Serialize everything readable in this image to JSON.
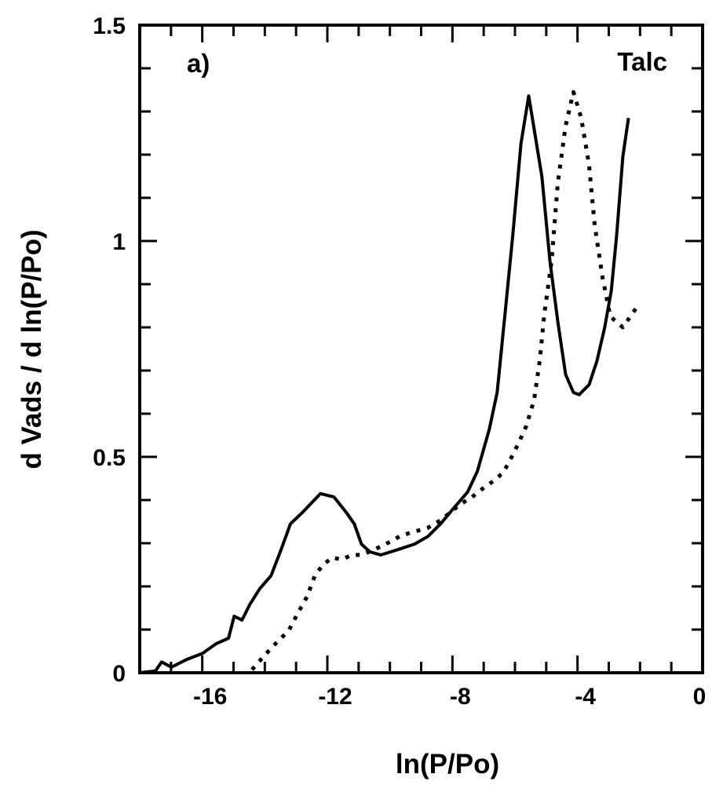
{
  "chart_data": {
    "type": "line",
    "title": "",
    "panel_label": "a)",
    "annotation": "Talc",
    "xlabel": "ln(P/Po)",
    "ylabel": "d Vads / d ln(P/Po)",
    "xlim": [
      -18,
      0
    ],
    "ylim": [
      0,
      1.5
    ],
    "x_ticks": [
      -16,
      -12,
      -8,
      -4,
      0
    ],
    "x_tick_labels": [
      "-16",
      "-12",
      "-8",
      "-4",
      "0"
    ],
    "x_minor_step": 1,
    "y_ticks": [
      0,
      0.5,
      1,
      1.5
    ],
    "y_tick_labels": [
      "0",
      "0.5",
      "1",
      "1.5"
    ],
    "y_minor_step": 0.1,
    "grid": false,
    "series": [
      {
        "name": "solid",
        "style": "solid",
        "color": "#000000",
        "x": [
          -18.0,
          -17.5,
          -17.3,
          -16.99,
          -16.49,
          -15.99,
          -15.56,
          -15.16,
          -14.98,
          -14.73,
          -14.48,
          -14.16,
          -13.8,
          -13.48,
          -13.18,
          -12.8,
          -12.22,
          -11.79,
          -11.39,
          -11.14,
          -10.91,
          -10.64,
          -10.29,
          -9.88,
          -9.21,
          -8.78,
          -8.38,
          -7.95,
          -7.52,
          -7.2,
          -6.82,
          -6.57,
          -6.32,
          -6.07,
          -5.81,
          -5.56,
          -5.14,
          -4.88,
          -4.63,
          -4.38,
          -4.13,
          -3.95,
          -3.63,
          -3.38,
          -3.13,
          -2.92,
          -2.75,
          -2.55,
          -2.37
        ],
        "y": [
          0.0,
          0.004,
          0.025,
          0.013,
          0.031,
          0.045,
          0.067,
          0.08,
          0.131,
          0.122,
          0.158,
          0.195,
          0.225,
          0.285,
          0.345,
          0.371,
          0.415,
          0.407,
          0.371,
          0.345,
          0.298,
          0.28,
          0.273,
          0.282,
          0.298,
          0.316,
          0.345,
          0.382,
          0.418,
          0.467,
          0.564,
          0.649,
          0.831,
          1.013,
          1.225,
          1.336,
          1.149,
          0.953,
          0.813,
          0.691,
          0.649,
          0.644,
          0.667,
          0.722,
          0.8,
          0.885,
          1.013,
          1.195,
          1.285
        ]
      },
      {
        "name": "dotted",
        "style": "dotted",
        "color": "#000000",
        "x": [
          -14.41,
          -14.06,
          -13.73,
          -13.23,
          -12.97,
          -12.65,
          -12.4,
          -12.15,
          -11.84,
          -11.54,
          -11.22,
          -10.89,
          -10.21,
          -9.63,
          -8.78,
          -8.38,
          -7.77,
          -7.37,
          -7.02,
          -6.69,
          -6.37,
          -6.14,
          -5.89,
          -5.64,
          -5.39,
          -5.21,
          -5.06,
          -4.83,
          -4.63,
          -4.38,
          -4.13,
          -3.88,
          -3.63,
          -3.45,
          -3.2,
          -2.95,
          -2.55,
          -2.12,
          -1.99
        ],
        "y": [
          0.007,
          0.036,
          0.062,
          0.098,
          0.135,
          0.176,
          0.225,
          0.249,
          0.267,
          0.262,
          0.273,
          0.273,
          0.295,
          0.318,
          0.336,
          0.353,
          0.389,
          0.407,
          0.427,
          0.444,
          0.464,
          0.495,
          0.531,
          0.571,
          0.631,
          0.722,
          0.831,
          0.953,
          1.135,
          1.267,
          1.345,
          1.285,
          1.176,
          1.036,
          0.916,
          0.825,
          0.8,
          0.845,
          0.853
        ]
      }
    ]
  }
}
